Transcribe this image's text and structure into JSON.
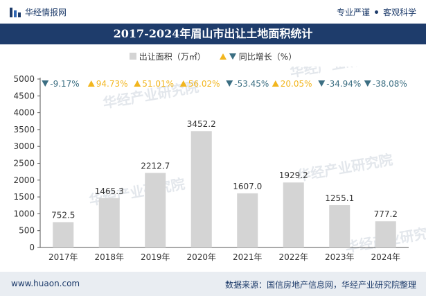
{
  "header": {
    "brand": "华经情报网",
    "tagline_left": "专业严谨",
    "tagline_right": "客观科学"
  },
  "chart_data": {
    "type": "bar",
    "title": "2017-2024年眉山市出让土地面积统计",
    "categories": [
      "2017年",
      "2018年",
      "2019年",
      "2020年",
      "2021年",
      "2022年",
      "2023年",
      "2024年"
    ],
    "series": [
      {
        "name": "出让面积（万㎡）",
        "values": [
          752.5,
          1465.3,
          2212.7,
          3452.2,
          1607.0,
          1929.2,
          1255.1,
          777.2
        ]
      }
    ],
    "value_labels": [
      "752.5",
      "1465.3",
      "2212.7",
      "3452.2",
      "1607.0",
      "1929.2",
      "1255.1",
      "777.2"
    ],
    "growth": {
      "name": "同比增长（%）",
      "labels": [
        "-9.17%",
        "94.73%",
        "51.01%",
        "56.02%",
        "-53.45%",
        "20.05%",
        "-34.94%",
        "-38.08%"
      ],
      "direction": [
        "down",
        "up",
        "up",
        "up",
        "down",
        "up",
        "down",
        "down"
      ]
    },
    "ylim": [
      0,
      5000
    ],
    "yticks": [
      "0",
      "500",
      "1000",
      "1500",
      "2000",
      "2500",
      "3000",
      "3500",
      "4000",
      "4500",
      "5000"
    ],
    "xlabel": "",
    "ylabel": "",
    "grid": false,
    "legend_position": "top-center"
  },
  "colors": {
    "bar": "#d4d4d4",
    "up": "#f2b61e",
    "down": "#3b6e82",
    "title_bg": "#1e3c6b"
  },
  "watermark": "华经产业研究院",
  "footer": {
    "website": "www.huaon.com",
    "source": "数据来源：国信房地产信息网，华经产业研究院整理"
  }
}
